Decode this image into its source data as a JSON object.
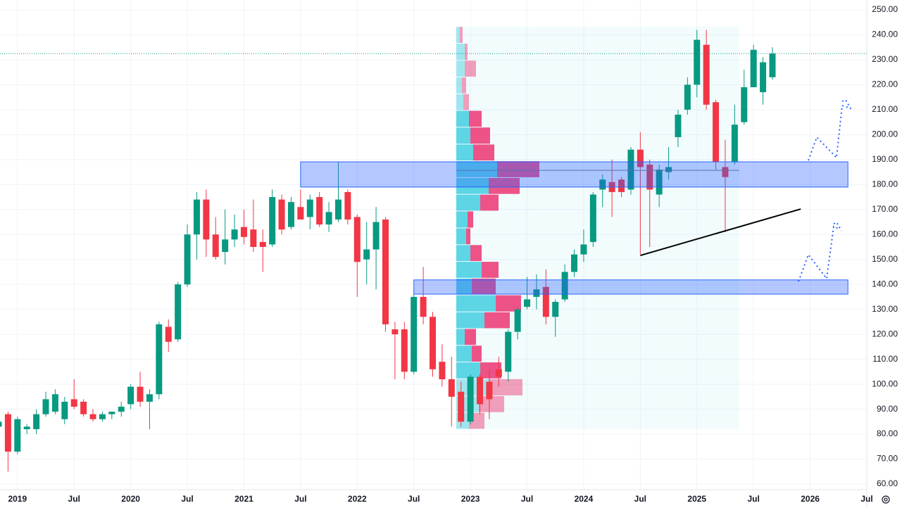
{
  "chart_data": {
    "type": "candlestick",
    "x": [
      "2018-11",
      "2018-12",
      "2019-01",
      "2019-02",
      "2019-03",
      "2019-04",
      "2019-05",
      "2019-06",
      "2019-07",
      "2019-08",
      "2019-09",
      "2019-10",
      "2019-11",
      "2019-12",
      "2020-01",
      "2020-02",
      "2020-03",
      "2020-04",
      "2020-05",
      "2020-06",
      "2020-07",
      "2020-08",
      "2020-09",
      "2020-10",
      "2020-11",
      "2020-12",
      "2021-01",
      "2021-02",
      "2021-03",
      "2021-04",
      "2021-05",
      "2021-06",
      "2021-07",
      "2021-08",
      "2021-09",
      "2021-10",
      "2021-11",
      "2021-12",
      "2022-01",
      "2022-02",
      "2022-03",
      "2022-04",
      "2022-05",
      "2022-06",
      "2022-07",
      "2022-08",
      "2022-09",
      "2022-10",
      "2022-11",
      "2022-12",
      "2023-01",
      "2023-02",
      "2023-03",
      "2023-04",
      "2023-05",
      "2023-06",
      "2023-07",
      "2023-08",
      "2023-09",
      "2023-10",
      "2023-11",
      "2023-12",
      "2024-01",
      "2024-02",
      "2024-03",
      "2024-04",
      "2024-05",
      "2024-06",
      "2024-07",
      "2024-08",
      "2024-09",
      "2024-10",
      "2024-11",
      "2024-12",
      "2025-01",
      "2025-02",
      "2025-03",
      "2025-04",
      "2025-05",
      "2025-06",
      "2025-07",
      "2025-08",
      "2025-09"
    ],
    "open": [
      83,
      88,
      73,
      82,
      82,
      88,
      89,
      86,
      94,
      93,
      88,
      86,
      88,
      89,
      92,
      99,
      93,
      96,
      123,
      118,
      140,
      160,
      174,
      160,
      153,
      158,
      163,
      162,
      157,
      156,
      174,
      163,
      171,
      167,
      175,
      164,
      166,
      177,
      167,
      150,
      154,
      166,
      122,
      122,
      105,
      135,
      127,
      109,
      102,
      97,
      85,
      103,
      101,
      106,
      105,
      121,
      131,
      135,
      139,
      127,
      134,
      145,
      152,
      157,
      178,
      181,
      182,
      178,
      194,
      188,
      176,
      185,
      199,
      210,
      220,
      236,
      213,
      187,
      189,
      205,
      219,
      217,
      223
    ],
    "high": [
      86,
      89,
      87,
      84,
      90,
      97,
      98,
      95,
      102,
      94,
      90,
      89,
      89,
      93,
      100,
      105,
      98,
      125,
      126,
      141,
      164,
      177,
      178,
      167,
      170,
      168,
      170,
      174,
      162,
      178,
      176,
      175,
      178,
      176,
      177,
      173,
      189,
      178,
      168,
      165,
      171,
      167,
      125,
      125,
      136,
      147,
      129,
      116,
      111,
      101,
      104,
      104,
      106,
      111,
      122,
      131,
      143,
      144,
      146,
      134,
      148,
      154,
      162,
      177,
      184,
      190,
      183,
      195,
      201,
      190,
      188,
      195,
      210,
      223,
      242,
      242,
      214,
      198,
      212,
      226,
      236,
      231,
      235
    ],
    "low": [
      82,
      65,
      72,
      80,
      80,
      87,
      88,
      84,
      90,
      87,
      85,
      85,
      86,
      87,
      90,
      91,
      82,
      94,
      113,
      117,
      139,
      150,
      151,
      150,
      148,
      155,
      156,
      153,
      145,
      155,
      160,
      162,
      166,
      162,
      163,
      161,
      165,
      164,
      135,
      140,
      138,
      121,
      102,
      102,
      104,
      124,
      103,
      99,
      83,
      83,
      84,
      88,
      86,
      99,
      101,
      118,
      130,
      130,
      124,
      119,
      133,
      143,
      149,
      155,
      171,
      167,
      175,
      176,
      152,
      155,
      171,
      182,
      195,
      208,
      215,
      210,
      186,
      161,
      188,
      204,
      219,
      212,
      222
    ],
    "close": [
      85,
      73,
      86,
      83,
      88,
      94,
      96,
      93,
      91,
      88,
      86,
      88,
      89,
      91,
      99,
      93,
      96,
      124,
      117,
      140,
      160,
      174,
      158,
      151,
      158,
      162,
      159,
      155,
      155,
      175,
      162,
      173,
      166,
      174,
      164,
      169,
      174,
      166,
      149,
      154,
      165,
      124,
      120,
      105,
      135,
      127,
      106,
      102,
      95,
      85,
      103,
      92,
      94,
      103,
      121,
      130,
      134,
      138,
      127,
      133,
      145,
      152,
      156,
      176,
      182,
      177,
      177,
      194,
      187,
      178,
      186,
      187,
      208,
      220,
      238,
      212,
      189,
      183,
      204,
      219,
      234,
      229,
      232.5
    ],
    "up_color": "#089981",
    "down_color": "#f23645",
    "xlim": [
      "2018-11",
      "2026-07"
    ],
    "xticks": [
      {
        "value": "2019-01",
        "label": "2019"
      },
      {
        "value": "2019-07",
        "label": "Jul"
      },
      {
        "value": "2020-01",
        "label": "2020"
      },
      {
        "value": "2020-07",
        "label": "Jul"
      },
      {
        "value": "2021-01",
        "label": "2021"
      },
      {
        "value": "2021-07",
        "label": "Jul"
      },
      {
        "value": "2022-01",
        "label": "2022"
      },
      {
        "value": "2022-07",
        "label": "Jul"
      },
      {
        "value": "2023-01",
        "label": "2023"
      },
      {
        "value": "2023-07",
        "label": "Jul"
      },
      {
        "value": "2024-01",
        "label": "2024"
      },
      {
        "value": "2024-07",
        "label": "Jul"
      },
      {
        "value": "2025-01",
        "label": "2025"
      },
      {
        "value": "2025-07",
        "label": "Jul"
      },
      {
        "value": "2026-01",
        "label": "2026"
      },
      {
        "value": "2026-07",
        "label": "Jul"
      }
    ],
    "ylim": [
      60,
      250
    ],
    "yticks": [
      {
        "value": 60,
        "label": "60.00"
      },
      {
        "value": 70,
        "label": "70.00"
      },
      {
        "value": 80,
        "label": "80.00"
      },
      {
        "value": 90,
        "label": "90.00"
      },
      {
        "value": 100,
        "label": "100.00"
      },
      {
        "value": 110,
        "label": "110.00"
      },
      {
        "value": 120,
        "label": "120.00"
      },
      {
        "value": 130,
        "label": "130.00"
      },
      {
        "value": 140,
        "label": "140.00"
      },
      {
        "value": 150,
        "label": "150.00"
      },
      {
        "value": 160,
        "label": "160.00"
      },
      {
        "value": 170,
        "label": "170.00"
      },
      {
        "value": 180,
        "label": "180.00"
      },
      {
        "value": 190,
        "label": "190.00"
      },
      {
        "value": 200,
        "label": "200.00"
      },
      {
        "value": 210,
        "label": "210.00"
      },
      {
        "value": 220,
        "label": "220.00"
      },
      {
        "value": 230,
        "label": "230.00"
      },
      {
        "value": 240,
        "label": "240.00"
      },
      {
        "value": 250,
        "label": "250.00"
      }
    ],
    "grid": true,
    "price_line": 232.5,
    "volume_profile": {
      "range": [
        "2022-12",
        "2025-05"
      ],
      "poc": 185.7,
      "value_area": [
        102.2,
        209.7
      ],
      "bins": [
        82,
        88.7,
        95.4,
        102.2,
        108.9,
        115.6,
        122.3,
        129.0,
        135.8,
        142.5,
        149.2,
        155.9,
        162.6,
        169.4,
        176.1,
        182.8,
        189.5,
        196.2,
        203.0,
        209.7,
        216.4,
        223.1,
        229.8,
        236.6,
        243.3
      ],
      "up": [
        18,
        32,
        46,
        34,
        22,
        12,
        40,
        56,
        22,
        36,
        20,
        14,
        16,
        34,
        46,
        58,
        24,
        20,
        18,
        10,
        8,
        12,
        12,
        5
      ],
      "down": [
        22,
        36,
        48,
        30,
        14,
        16,
        36,
        36,
        34,
        24,
        16,
        6,
        8,
        26,
        44,
        60,
        30,
        28,
        18,
        8,
        6,
        16,
        4,
        4
      ],
      "up_color": "#4dd0e1",
      "down_color": "#ec407a"
    },
    "zones": [
      {
        "x": [
          "2021-07",
          "2026-05"
        ],
        "y": [
          179,
          189.1
        ]
      },
      {
        "x": [
          "2022-07",
          "2026-05"
        ],
        "y": [
          136.1,
          141.8
        ]
      }
    ],
    "trend_line": {
      "x": [
        "2024-07",
        "2025-12"
      ],
      "y": [
        151.6,
        170.2
      ]
    }
  }
}
